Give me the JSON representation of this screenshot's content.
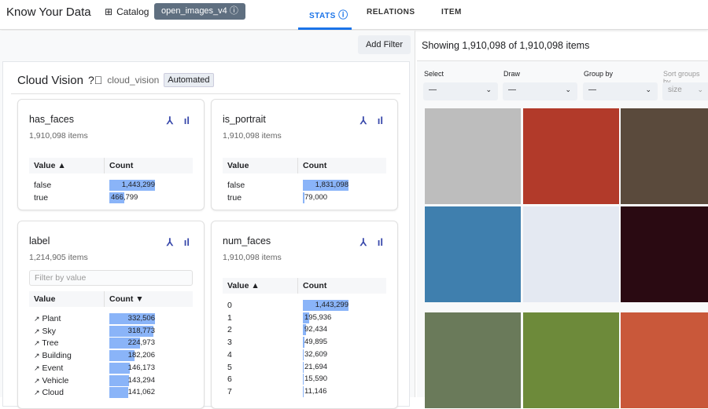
{
  "header": {
    "brand": "Know Your Data",
    "catalog": "Catalog",
    "dataset": "open_images_v4",
    "tabs": [
      {
        "label": "STATS",
        "active": true
      },
      {
        "label": "RELATIONS"
      },
      {
        "label": "ITEM"
      }
    ]
  },
  "toolbar": {
    "add_filter": "Add Filter"
  },
  "section": {
    "title": "Cloud Vision",
    "key": "cloud_vision",
    "badge": "Automated"
  },
  "cards": {
    "has_faces": {
      "title": "has_faces",
      "subtitle": "1,910,098 items",
      "col_value": "Value ▲",
      "col_count": "Count",
      "rows": [
        {
          "value": "false",
          "count": "1,443,299",
          "frac": 1
        },
        {
          "value": "true",
          "count": "466,799",
          "frac": 0.32
        }
      ]
    },
    "is_portrait": {
      "title": "is_portrait",
      "subtitle": "1,910,098 items",
      "col_value": "Value",
      "col_count": "Count",
      "rows": [
        {
          "value": "false",
          "count": "1,831,098",
          "frac": 1
        },
        {
          "value": "true",
          "count": "79,000",
          "frac": 0.04
        }
      ]
    },
    "label": {
      "title": "label",
      "subtitle": "1,214,905 items",
      "filter_placeholder": "Filter by value",
      "col_value": "Value",
      "col_count": "Count ▼",
      "rows": [
        {
          "value": "Plant",
          "count": "332,506",
          "frac": 1
        },
        {
          "value": "Sky",
          "count": "318,773",
          "frac": 0.96
        },
        {
          "value": "Tree",
          "count": "224,973",
          "frac": 0.68
        },
        {
          "value": "Building",
          "count": "182,206",
          "frac": 0.55
        },
        {
          "value": "Event",
          "count": "146,173",
          "frac": 0.44
        },
        {
          "value": "Vehicle",
          "count": "143,294",
          "frac": 0.43
        },
        {
          "value": "Cloud",
          "count": "141,062",
          "frac": 0.42
        }
      ]
    },
    "num_faces": {
      "title": "num_faces",
      "subtitle": "1,910,098 items",
      "col_value": "Value ▲",
      "col_count": "Count",
      "rows": [
        {
          "value": "0",
          "count": "1,443,299",
          "frac": 1
        },
        {
          "value": "1",
          "count": "195,936",
          "frac": 0.14
        },
        {
          "value": "2",
          "count": "92,434",
          "frac": 0.064
        },
        {
          "value": "3",
          "count": "49,895",
          "frac": 0.035
        },
        {
          "value": "4",
          "count": "32,609",
          "frac": 0.023
        },
        {
          "value": "5",
          "count": "21,694",
          "frac": 0.015
        },
        {
          "value": "6",
          "count": "15,590",
          "frac": 0.011
        },
        {
          "value": "7",
          "count": "11,146",
          "frac": 0.008
        }
      ]
    }
  },
  "right": {
    "showing": "Showing 1,910,098 of 1,910,098 items",
    "controls": [
      {
        "label": "Select",
        "value": "—"
      },
      {
        "label": "Draw",
        "value": "—"
      },
      {
        "label": "Group by",
        "value": "—"
      },
      {
        "label": "Sort groups by",
        "value": "size"
      }
    ],
    "image_colors": [
      "#bdbdbd",
      "#b23a2a",
      "#5a4a3c",
      "#3f7fae",
      "#e4e9f2",
      "#2a0a12",
      "#6a7a5a",
      "#6d8a3a",
      "#c9583a",
      "#7c8e6a"
    ]
  }
}
